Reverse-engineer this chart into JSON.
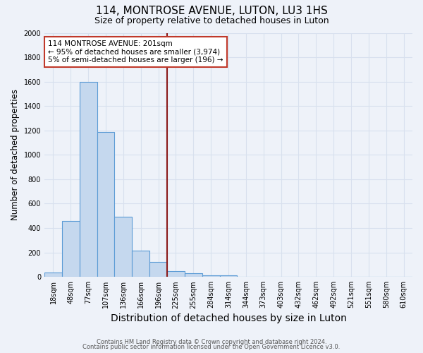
{
  "title": "114, MONTROSE AVENUE, LUTON, LU3 1HS",
  "subtitle": "Size of property relative to detached houses in Luton",
  "xlabel": "Distribution of detached houses by size in Luton",
  "ylabel": "Number of detached properties",
  "bin_labels": [
    "18sqm",
    "48sqm",
    "77sqm",
    "107sqm",
    "136sqm",
    "166sqm",
    "196sqm",
    "225sqm",
    "255sqm",
    "284sqm",
    "314sqm",
    "344sqm",
    "373sqm",
    "403sqm",
    "432sqm",
    "462sqm",
    "492sqm",
    "521sqm",
    "551sqm",
    "580sqm",
    "610sqm"
  ],
  "bar_heights": [
    35,
    460,
    1600,
    1190,
    490,
    215,
    120,
    47,
    30,
    15,
    10,
    0,
    0,
    0,
    0,
    0,
    0,
    0,
    0,
    0,
    0
  ],
  "bar_color": "#c5d8ee",
  "bar_edge_color": "#5b9bd5",
  "red_line_color": "#8b1a1a",
  "annotation_text": "114 MONTROSE AVENUE: 201sqm\n← 95% of detached houses are smaller (3,974)\n5% of semi-detached houses are larger (196) →",
  "annotation_box_color": "#ffffff",
  "annotation_box_edge": "#c0392b",
  "ylim": [
    0,
    2000
  ],
  "yticks": [
    0,
    200,
    400,
    600,
    800,
    1000,
    1200,
    1400,
    1600,
    1800,
    2000
  ],
  "footnote1": "Contains HM Land Registry data © Crown copyright and database right 2024.",
  "footnote2": "Contains public sector information licensed under the Open Government Licence v3.0.",
  "bg_color": "#eef2f9",
  "grid_color": "#d8e0ee",
  "title_fontsize": 11,
  "subtitle_fontsize": 9,
  "xlabel_fontsize": 10,
  "ylabel_fontsize": 8.5,
  "tick_fontsize": 7,
  "annot_fontsize": 7.5,
  "footnote_fontsize": 6
}
